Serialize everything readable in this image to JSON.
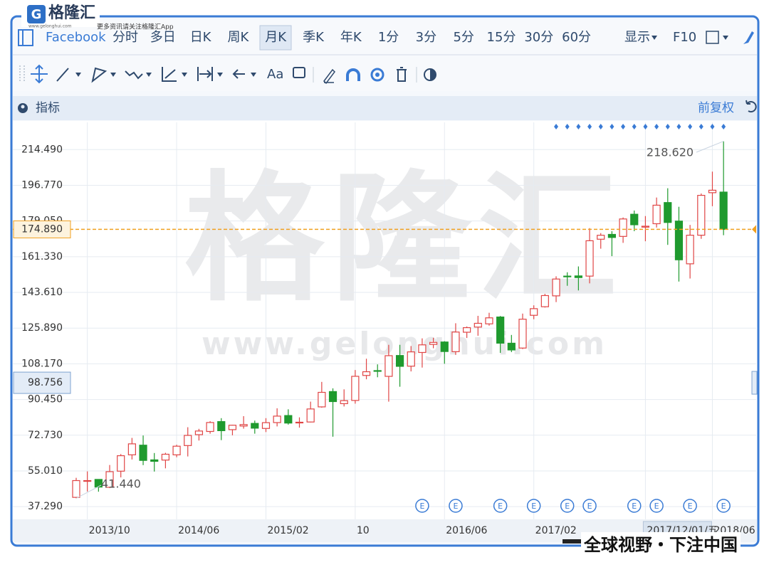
{
  "header": {
    "icon": "G",
    "logo": "格隆汇",
    "site": "www.gelonghui.com",
    "tagline": "更多资讯请关注格隆汇App"
  },
  "toolbar": {
    "symbol": "Facebook",
    "periods": [
      "分时",
      "多日",
      "日K",
      "周K",
      "月K",
      "季K",
      "年K",
      "1分",
      "3分",
      "5分",
      "15分",
      "30分",
      "60分"
    ],
    "display": "显示",
    "f10": "F10"
  },
  "drawing_tools": {
    "text_tool": "Aa"
  },
  "indicator_bar": {
    "label": "指标",
    "adjust": "前复权"
  },
  "watermark": {
    "text": "格隆汇",
    "url": "www.gelonghui.com"
  },
  "earnings_marker": "E",
  "footer": "全球视野・下注中国",
  "chart_data": {
    "type": "candlestick",
    "categories": [
      null,
      "2013/10",
      null,
      null,
      null,
      null,
      null,
      null,
      null,
      "2014/06",
      null,
      null,
      null,
      null,
      null,
      null,
      null,
      "2015/02",
      null,
      null,
      null,
      null,
      null,
      null,
      null,
      "10",
      null,
      null,
      null,
      null,
      null,
      null,
      null,
      "2016/06",
      null,
      null,
      null,
      null,
      null,
      null,
      null,
      "2017/02",
      null,
      null,
      null,
      null,
      null,
      null,
      null,
      null,
      null,
      "2017/12/01/五",
      null,
      null,
      null,
      null,
      null,
      "2018/06",
      null
    ],
    "open": [
      41.9,
      50.0,
      50.8,
      46.9,
      54.9,
      63.0,
      67.8,
      60.5,
      60.4,
      63.0,
      67.6,
      73.0,
      74.6,
      79.5,
      75.5,
      77.3,
      78.6,
      76.1,
      79.0,
      82.5,
      79.0,
      79.3,
      86.8,
      94.4,
      88.4,
      90.0,
      102.4,
      104.8,
      101.95,
      112.3,
      107.0,
      113.8,
      117.8,
      119.0,
      114.2,
      123.85,
      126.4,
      128.0,
      131.4,
      118.4,
      116.0,
      132.25,
      136.5,
      141.9,
      151.7,
      151.8,
      151.7,
      170.0,
      172.4,
      171.4,
      182.4,
      176.0,
      177.7,
      188.2,
      179.0,
      157.8,
      172.0,
      193.1,
      193.4
    ],
    "high": [
      51.6,
      54.8,
      50.9,
      57.96,
      63.4,
      71.4,
      72.6,
      63.9,
      64.0,
      68.0,
      76.7,
      75.9,
      79.7,
      81.2,
      77.9,
      82.2,
      80.0,
      81.2,
      86.1,
      85.6,
      81.6,
      89.4,
      99.2,
      96.0,
      95.5,
      105.1,
      110.7,
      107.9,
      117.6,
      117.6,
      116.99,
      120.8,
      121.1,
      119.4,
      128.3,
      126.7,
      131.98,
      133.5,
      131.9,
      122.5,
      133.1,
      137.2,
      142.9,
      151.6,
      153.6,
      156.5,
      175.5,
      173.05,
      174.0,
      180.8,
      184.25,
      181.5,
      190.7,
      195.3,
      186.1,
      177.1,
      192.7,
      203.55,
      218.62
    ],
    "low": [
      41.44,
      44.8,
      44.7,
      46.5,
      51.8,
      60.7,
      57.9,
      54.7,
      56.3,
      61.8,
      62.2,
      70.1,
      73.5,
      70.3,
      72.7,
      76.0,
      73.5,
      74.3,
      77.1,
      78.0,
      76.5,
      79.1,
      86.4,
      72.0,
      87.0,
      88.4,
      100.5,
      101.5,
      89.4,
      96.8,
      104.4,
      106.3,
      115.9,
      108.2,
      112.6,
      121.0,
      122.1,
      127.1,
      113.6,
      114.0,
      115.5,
      130.3,
      136.1,
      138.8,
      146.9,
      144.6,
      148.1,
      165.3,
      161.6,
      168.2,
      174.0,
      169.0,
      175.8,
      167.2,
      149.0,
      150.5,
      170.2,
      186.4,
      172.0
    ],
    "close": [
      50.23,
      50.21,
      47.01,
      54.65,
      62.57,
      68.46,
      60.24,
      59.78,
      63.3,
      67.29,
      72.65,
      74.82,
      79.04,
      74.99,
      77.7,
      78.02,
      76.24,
      78.97,
      82.22,
      78.77,
      79.19,
      85.77,
      94.01,
      89.43,
      89.9,
      101.97,
      104.24,
      104.66,
      112.21,
      106.92,
      114.1,
      117.58,
      118.81,
      114.28,
      123.94,
      126.12,
      128.27,
      130.99,
      118.42,
      115.05,
      130.32,
      135.54,
      142.05,
      150.25,
      151.46,
      150.98,
      169.25,
      171.97,
      170.87,
      180.06,
      177.18,
      176.46,
      186.89,
      178.32,
      159.79,
      172.0,
      191.78,
      194.32,
      174.89
    ],
    "up_color": "#e04545",
    "down_color": "#1f9a2e",
    "ylim": [
      31,
      228
    ],
    "yticks": [
      {
        "value": 37.29,
        "label": "37.290"
      },
      {
        "value": 55.01,
        "label": "55.010"
      },
      {
        "value": 72.73,
        "label": "72.730"
      },
      {
        "value": 90.45,
        "label": "90.450"
      },
      {
        "value": 108.17,
        "label": "108.170"
      },
      {
        "value": 125.89,
        "label": "125.890"
      },
      {
        "value": 143.61,
        "label": "143.610"
      },
      {
        "value": 161.33,
        "label": "161.330"
      },
      {
        "value": 179.05,
        "label": "179.050"
      },
      {
        "value": 196.77,
        "label": "196.770"
      },
      {
        "value": 214.49,
        "label": "214.490"
      }
    ],
    "grid": true,
    "last_price": {
      "value": 174.89,
      "label": "174.890"
    },
    "crosshair_price": 98.756,
    "high_label": {
      "value": 218.62,
      "label": "218.620"
    },
    "low_label": {
      "value": 41.44,
      "label": "41.440"
    }
  }
}
